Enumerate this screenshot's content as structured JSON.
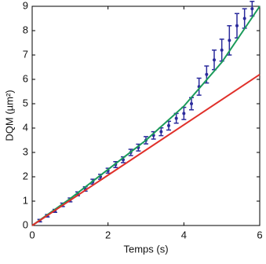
{
  "chart_data": {
    "type": "scatter",
    "xlabel": "Temps (s)",
    "ylabel": "DQM (µm²)",
    "xlim": [
      0,
      6
    ],
    "ylim": [
      0,
      9
    ],
    "xticks": [
      0,
      2,
      4,
      6
    ],
    "yticks": [
      0,
      1,
      2,
      3,
      4,
      5,
      6,
      7,
      8,
      9
    ],
    "series": [
      {
        "color": "#2b2b9c",
        "kind": "errorbar",
        "x": [
          0.2,
          0.4,
          0.6,
          0.8,
          1.0,
          1.2,
          1.4,
          1.6,
          1.8,
          2.0,
          2.2,
          2.4,
          2.6,
          2.8,
          3.0,
          3.2,
          3.4,
          3.6,
          3.8,
          4.0,
          4.2,
          4.4,
          4.6,
          4.8,
          5.0,
          5.2,
          5.4,
          5.6,
          5.8
        ],
        "values": [
          0.2,
          0.4,
          0.6,
          0.85,
          1.05,
          1.3,
          1.5,
          1.8,
          2.0,
          2.25,
          2.5,
          2.7,
          3.0,
          3.2,
          3.5,
          3.7,
          3.85,
          4.1,
          4.4,
          4.6,
          5.0,
          5.7,
          6.2,
          6.8,
          7.2,
          7.6,
          8.2,
          8.5,
          8.9
        ],
        "errors": [
          0.05,
          0.05,
          0.06,
          0.07,
          0.08,
          0.08,
          0.09,
          0.1,
          0.1,
          0.1,
          0.12,
          0.12,
          0.13,
          0.14,
          0.15,
          0.15,
          0.16,
          0.18,
          0.2,
          0.25,
          0.25,
          0.35,
          0.35,
          0.4,
          0.45,
          0.6,
          0.5,
          0.4,
          0.3
        ]
      },
      {
        "color": "#1a9a5a",
        "kind": "line",
        "x": [
          0,
          1,
          2,
          3,
          4,
          5,
          6
        ],
        "values": [
          0,
          1.1,
          2.3,
          3.5,
          4.9,
          6.7,
          9
        ]
      },
      {
        "color": "#e0302a",
        "kind": "line",
        "x": [
          0,
          6
        ],
        "values": [
          0,
          6.2
        ]
      }
    ]
  }
}
